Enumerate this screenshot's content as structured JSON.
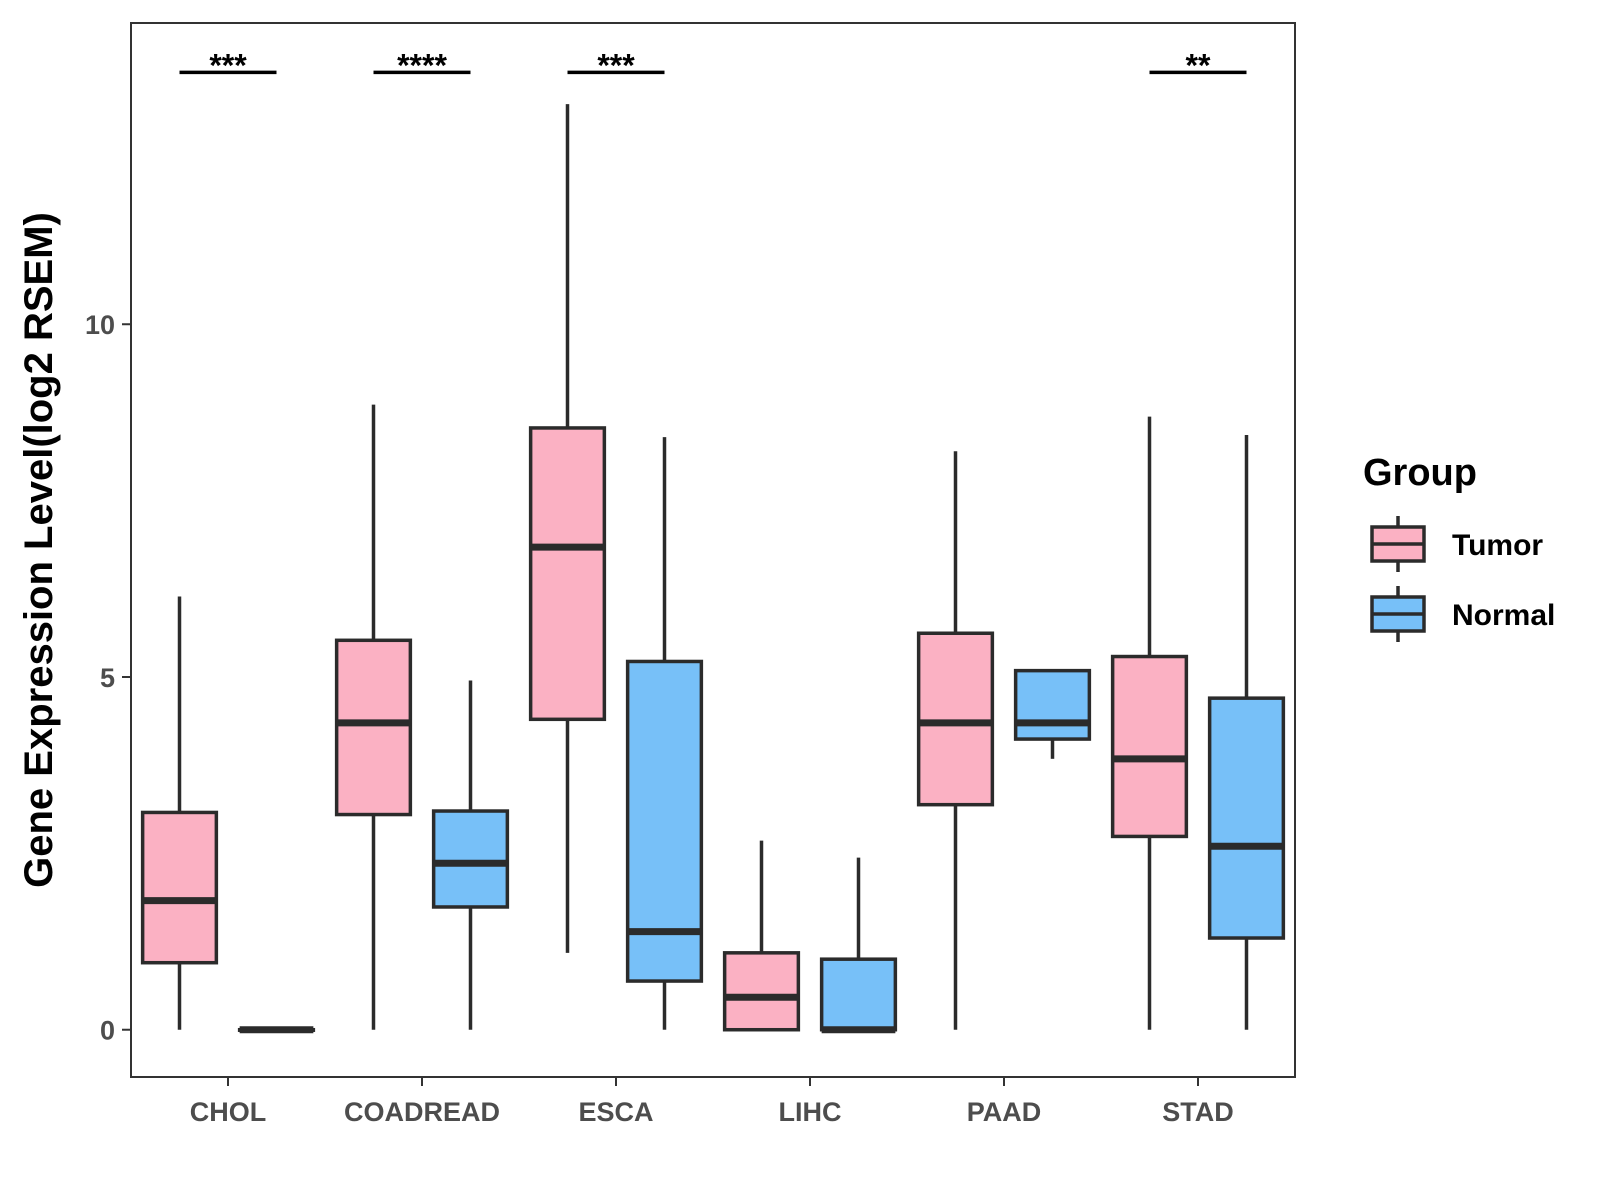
{
  "chart_data": {
    "type": "boxplot",
    "title": "",
    "xlabel": "",
    "ylabel": "Gene Expression Level(log2 RSEM)",
    "ylim": [
      -0.67,
      14.27
    ],
    "yticks": [
      0,
      5,
      10
    ],
    "grid": false,
    "legend": {
      "title": "Group",
      "position": "right",
      "entries": [
        {
          "name": "Tumor",
          "color": "#FBB1C3"
        },
        {
          "name": "Normal",
          "color": "#77C0F8"
        }
      ]
    },
    "categories": [
      "CHOL",
      "COADREAD",
      "ESCA",
      "LIHC",
      "PAAD",
      "STAD"
    ],
    "series": [
      {
        "name": "Tumor",
        "color": "#FBB1C3",
        "boxes": [
          {
            "min": 0.0,
            "q1": 0.95,
            "median": 1.83,
            "q3": 3.08,
            "max": 6.14
          },
          {
            "min": 0.0,
            "q1": 3.05,
            "median": 4.35,
            "q3": 5.52,
            "max": 8.86
          },
          {
            "min": 1.09,
            "q1": 4.4,
            "median": 6.84,
            "q3": 8.53,
            "max": 13.12
          },
          {
            "min": 0.0,
            "q1": 0.0,
            "median": 0.46,
            "q3": 1.09,
            "max": 2.68
          },
          {
            "min": 0.0,
            "q1": 3.19,
            "median": 4.35,
            "q3": 5.62,
            "max": 8.2
          },
          {
            "min": 0.0,
            "q1": 2.74,
            "median": 3.84,
            "q3": 5.29,
            "max": 8.69
          }
        ]
      },
      {
        "name": "Normal",
        "color": "#77C0F8",
        "boxes": [
          {
            "min": 0.0,
            "q1": 0.0,
            "median": 0.0,
            "q3": 0.0,
            "max": 0.0
          },
          {
            "min": 0.0,
            "q1": 1.74,
            "median": 2.36,
            "q3": 3.1,
            "max": 4.95
          },
          {
            "min": 0.0,
            "q1": 0.69,
            "median": 1.39,
            "q3": 5.22,
            "max": 8.4
          },
          {
            "min": 0.0,
            "q1": 0.0,
            "median": 0.0,
            "q3": 1.0,
            "max": 2.44
          },
          {
            "min": 3.84,
            "q1": 4.12,
            "median": 4.35,
            "q3": 5.09,
            "max": 5.09
          },
          {
            "min": 0.0,
            "q1": 1.3,
            "median": 2.6,
            "q3": 4.7,
            "max": 8.43
          }
        ]
      }
    ],
    "significance": [
      {
        "category": "CHOL",
        "label": "***",
        "y": 13.57
      },
      {
        "category": "COADREAD",
        "label": "****",
        "y": 13.57
      },
      {
        "category": "ESCA",
        "label": "***",
        "y": 13.57
      },
      {
        "category": "STAD",
        "label": "**",
        "y": 13.57
      }
    ]
  }
}
